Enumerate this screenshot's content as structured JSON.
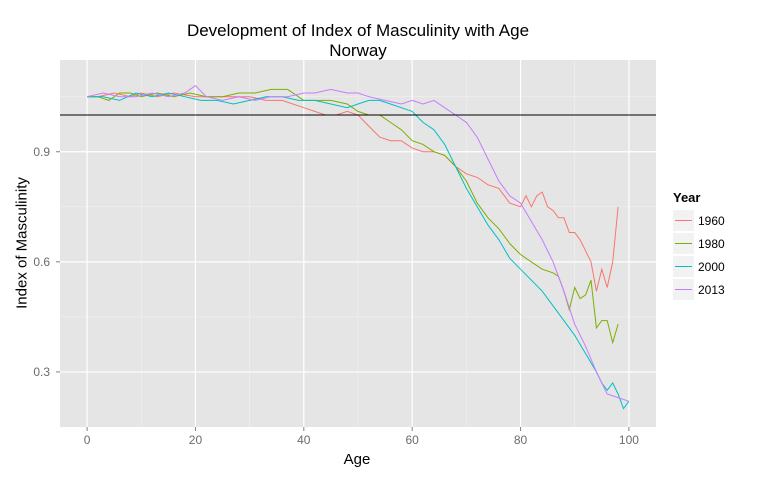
{
  "chart_data": {
    "type": "line",
    "title": "Development of Index of Masculinity with Age",
    "subtitle": "Norway",
    "xlabel": "Age",
    "ylabel": "Index of Masculinity",
    "xlim": [
      -5,
      105
    ],
    "ylim": [
      0.15,
      1.15
    ],
    "x_ticks": [
      0,
      20,
      40,
      60,
      80,
      100
    ],
    "x_tick_labels": [
      "0",
      "20",
      "40",
      "60",
      "80",
      "100"
    ],
    "y_ticks": [
      0.3,
      0.6,
      0.9
    ],
    "y_tick_labels": [
      "0.3",
      "0.6",
      "0.9"
    ],
    "reference_line_y": 1.0,
    "grid": true,
    "legend_title": "Year",
    "legend_position": "right",
    "series": [
      {
        "name": "1960",
        "color": "#F8766D",
        "points": [
          [
            0,
            1.05
          ],
          [
            2,
            1.05
          ],
          [
            5,
            1.06
          ],
          [
            8,
            1.05
          ],
          [
            10,
            1.06
          ],
          [
            13,
            1.05
          ],
          [
            16,
            1.06
          ],
          [
            20,
            1.05
          ],
          [
            23,
            1.05
          ],
          [
            26,
            1.05
          ],
          [
            30,
            1.05
          ],
          [
            33,
            1.04
          ],
          [
            36,
            1.04
          ],
          [
            40,
            1.02
          ],
          [
            42,
            1.01
          ],
          [
            44,
            1.0
          ],
          [
            46,
            1.0
          ],
          [
            48,
            1.01
          ],
          [
            50,
            1.0
          ],
          [
            52,
            0.97
          ],
          [
            54,
            0.94
          ],
          [
            56,
            0.93
          ],
          [
            58,
            0.93
          ],
          [
            60,
            0.91
          ],
          [
            62,
            0.9
          ],
          [
            64,
            0.9
          ],
          [
            66,
            0.89
          ],
          [
            68,
            0.86
          ],
          [
            70,
            0.84
          ],
          [
            72,
            0.83
          ],
          [
            74,
            0.81
          ],
          [
            76,
            0.8
          ],
          [
            78,
            0.76
          ],
          [
            80,
            0.75
          ],
          [
            81,
            0.78
          ],
          [
            82,
            0.75
          ],
          [
            83,
            0.78
          ],
          [
            84,
            0.79
          ],
          [
            85,
            0.75
          ],
          [
            86,
            0.74
          ],
          [
            87,
            0.72
          ],
          [
            88,
            0.72
          ],
          [
            89,
            0.68
          ],
          [
            90,
            0.68
          ],
          [
            91,
            0.66
          ],
          [
            92,
            0.63
          ],
          [
            93,
            0.6
          ],
          [
            94,
            0.52
          ],
          [
            95,
            0.58
          ],
          [
            96,
            0.53
          ],
          [
            97,
            0.6
          ],
          [
            98,
            0.75
          ]
        ]
      },
      {
        "name": "1980",
        "color": "#7CAE00",
        "points": [
          [
            0,
            1.05
          ],
          [
            2,
            1.05
          ],
          [
            4,
            1.04
          ],
          [
            6,
            1.06
          ],
          [
            8,
            1.06
          ],
          [
            10,
            1.05
          ],
          [
            13,
            1.06
          ],
          [
            16,
            1.05
          ],
          [
            19,
            1.06
          ],
          [
            22,
            1.05
          ],
          [
            25,
            1.05
          ],
          [
            28,
            1.06
          ],
          [
            31,
            1.06
          ],
          [
            34,
            1.07
          ],
          [
            37,
            1.07
          ],
          [
            40,
            1.04
          ],
          [
            42,
            1.04
          ],
          [
            45,
            1.04
          ],
          [
            48,
            1.03
          ],
          [
            50,
            1.01
          ],
          [
            52,
            1.0
          ],
          [
            54,
            1.0
          ],
          [
            56,
            0.98
          ],
          [
            58,
            0.96
          ],
          [
            60,
            0.93
          ],
          [
            62,
            0.92
          ],
          [
            64,
            0.9
          ],
          [
            66,
            0.89
          ],
          [
            68,
            0.86
          ],
          [
            70,
            0.82
          ],
          [
            72,
            0.76
          ],
          [
            74,
            0.72
          ],
          [
            76,
            0.69
          ],
          [
            78,
            0.65
          ],
          [
            80,
            0.62
          ],
          [
            82,
            0.6
          ],
          [
            84,
            0.58
          ],
          [
            86,
            0.57
          ],
          [
            87,
            0.56
          ],
          [
            88,
            0.52
          ],
          [
            89,
            0.47
          ],
          [
            90,
            0.53
          ],
          [
            91,
            0.5
          ],
          [
            92,
            0.51
          ],
          [
            93,
            0.55
          ],
          [
            94,
            0.42
          ],
          [
            95,
            0.44
          ],
          [
            96,
            0.44
          ],
          [
            97,
            0.38
          ],
          [
            98,
            0.43
          ]
        ]
      },
      {
        "name": "2000",
        "color": "#00BFC4",
        "points": [
          [
            0,
            1.05
          ],
          [
            3,
            1.05
          ],
          [
            6,
            1.04
          ],
          [
            9,
            1.06
          ],
          [
            12,
            1.05
          ],
          [
            15,
            1.06
          ],
          [
            18,
            1.05
          ],
          [
            21,
            1.04
          ],
          [
            24,
            1.04
          ],
          [
            27,
            1.03
          ],
          [
            30,
            1.04
          ],
          [
            33,
            1.05
          ],
          [
            36,
            1.05
          ],
          [
            39,
            1.04
          ],
          [
            42,
            1.04
          ],
          [
            45,
            1.03
          ],
          [
            48,
            1.02
          ],
          [
            50,
            1.03
          ],
          [
            52,
            1.04
          ],
          [
            54,
            1.04
          ],
          [
            56,
            1.03
          ],
          [
            58,
            1.02
          ],
          [
            60,
            1.01
          ],
          [
            62,
            0.98
          ],
          [
            64,
            0.96
          ],
          [
            66,
            0.92
          ],
          [
            68,
            0.86
          ],
          [
            70,
            0.8
          ],
          [
            72,
            0.75
          ],
          [
            74,
            0.7
          ],
          [
            76,
            0.66
          ],
          [
            78,
            0.61
          ],
          [
            80,
            0.58
          ],
          [
            82,
            0.55
          ],
          [
            84,
            0.52
          ],
          [
            86,
            0.48
          ],
          [
            88,
            0.44
          ],
          [
            90,
            0.4
          ],
          [
            92,
            0.35
          ],
          [
            94,
            0.3
          ],
          [
            95,
            0.27
          ],
          [
            96,
            0.25
          ],
          [
            97,
            0.27
          ],
          [
            98,
            0.24
          ],
          [
            99,
            0.2
          ],
          [
            100,
            0.22
          ]
        ]
      },
      {
        "name": "2013",
        "color": "#C77CFF",
        "points": [
          [
            0,
            1.05
          ],
          [
            3,
            1.06
          ],
          [
            6,
            1.05
          ],
          [
            9,
            1.05
          ],
          [
            12,
            1.06
          ],
          [
            15,
            1.05
          ],
          [
            18,
            1.06
          ],
          [
            20,
            1.08
          ],
          [
            22,
            1.05
          ],
          [
            25,
            1.04
          ],
          [
            28,
            1.05
          ],
          [
            31,
            1.04
          ],
          [
            34,
            1.05
          ],
          [
            37,
            1.05
          ],
          [
            40,
            1.06
          ],
          [
            42,
            1.06
          ],
          [
            45,
            1.07
          ],
          [
            48,
            1.06
          ],
          [
            50,
            1.06
          ],
          [
            52,
            1.05
          ],
          [
            55,
            1.04
          ],
          [
            58,
            1.03
          ],
          [
            60,
            1.04
          ],
          [
            62,
            1.03
          ],
          [
            64,
            1.04
          ],
          [
            66,
            1.02
          ],
          [
            68,
            1.0
          ],
          [
            70,
            0.98
          ],
          [
            72,
            0.94
          ],
          [
            74,
            0.88
          ],
          [
            76,
            0.82
          ],
          [
            78,
            0.78
          ],
          [
            80,
            0.76
          ],
          [
            82,
            0.71
          ],
          [
            84,
            0.66
          ],
          [
            86,
            0.6
          ],
          [
            88,
            0.52
          ],
          [
            90,
            0.43
          ],
          [
            92,
            0.37
          ],
          [
            94,
            0.3
          ],
          [
            96,
            0.24
          ],
          [
            98,
            0.23
          ],
          [
            100,
            0.22
          ]
        ]
      }
    ]
  }
}
